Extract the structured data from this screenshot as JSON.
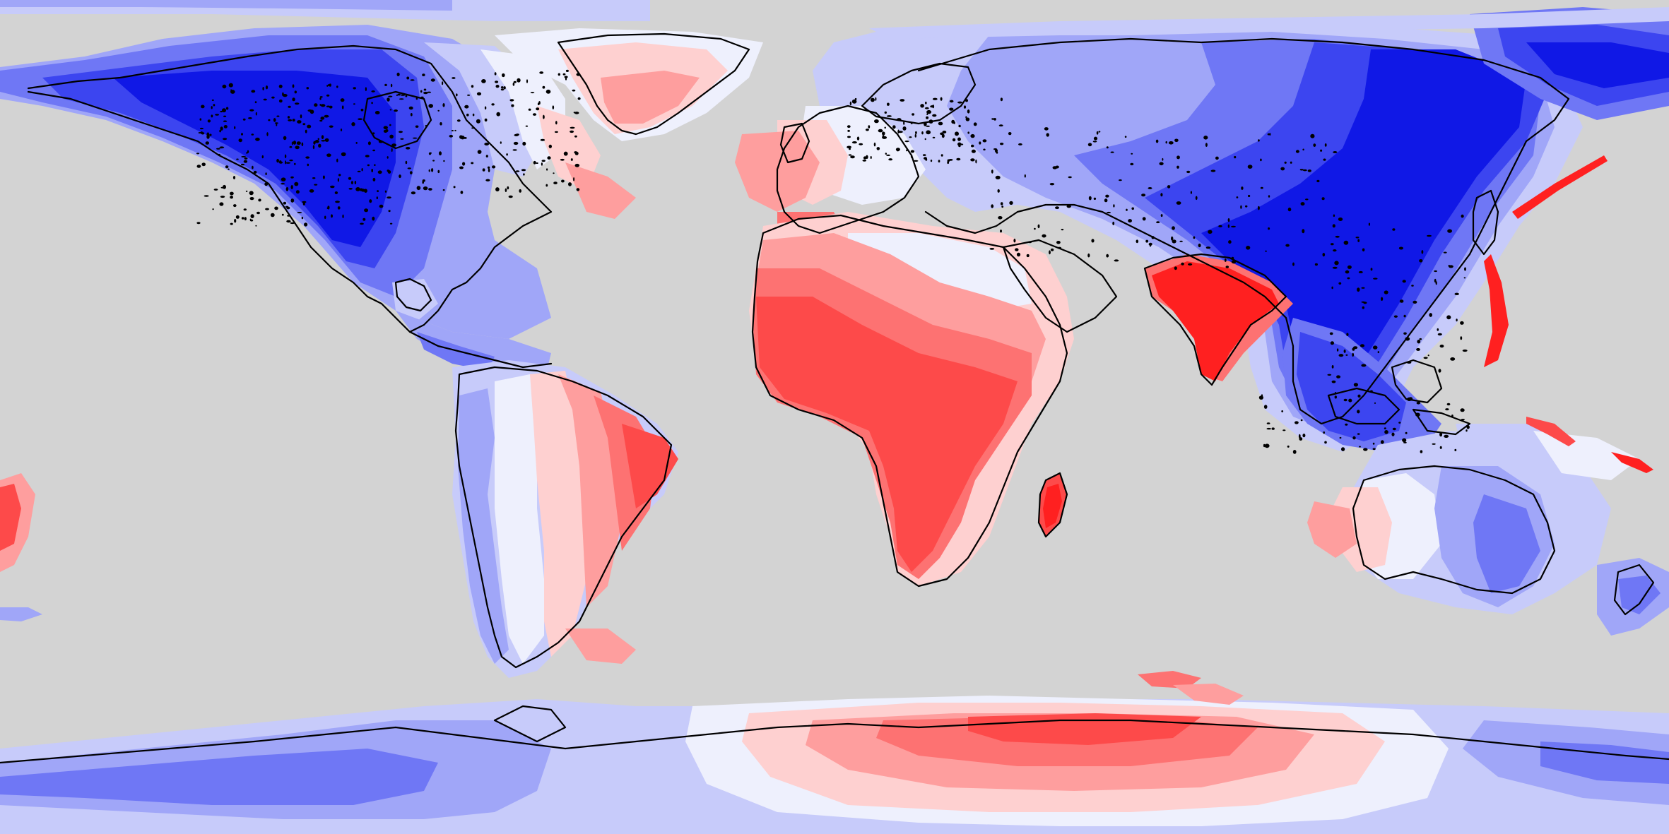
{
  "map": {
    "projection": "equirectangular",
    "extent": {
      "lon": [
        -180,
        180
      ],
      "lat": [
        -90,
        90
      ]
    },
    "style": "filled contour anomaly map (diverging blue-white-red) with black coastlines over grey ocean",
    "colors": {
      "ocean": "#d3d3d3",
      "coastline": "#000000",
      "red_5": "#ff2020",
      "red_4": "#fd4a4a",
      "red_3": "#fd7272",
      "red_2": "#fe9e9e",
      "red_1": "#fed0d0",
      "white": "#eef0fd",
      "blue_1": "#c7cbfa",
      "blue_2": "#a0a6f8",
      "blue_3": "#6f77f5",
      "blue_4": "#3c45f0",
      "blue_5": "#1018e6"
    },
    "color_order_low_to_high": [
      "blue_5",
      "blue_4",
      "blue_3",
      "blue_2",
      "blue_1",
      "white",
      "red_1",
      "red_2",
      "red_3",
      "red_4",
      "red_5"
    ]
  }
}
